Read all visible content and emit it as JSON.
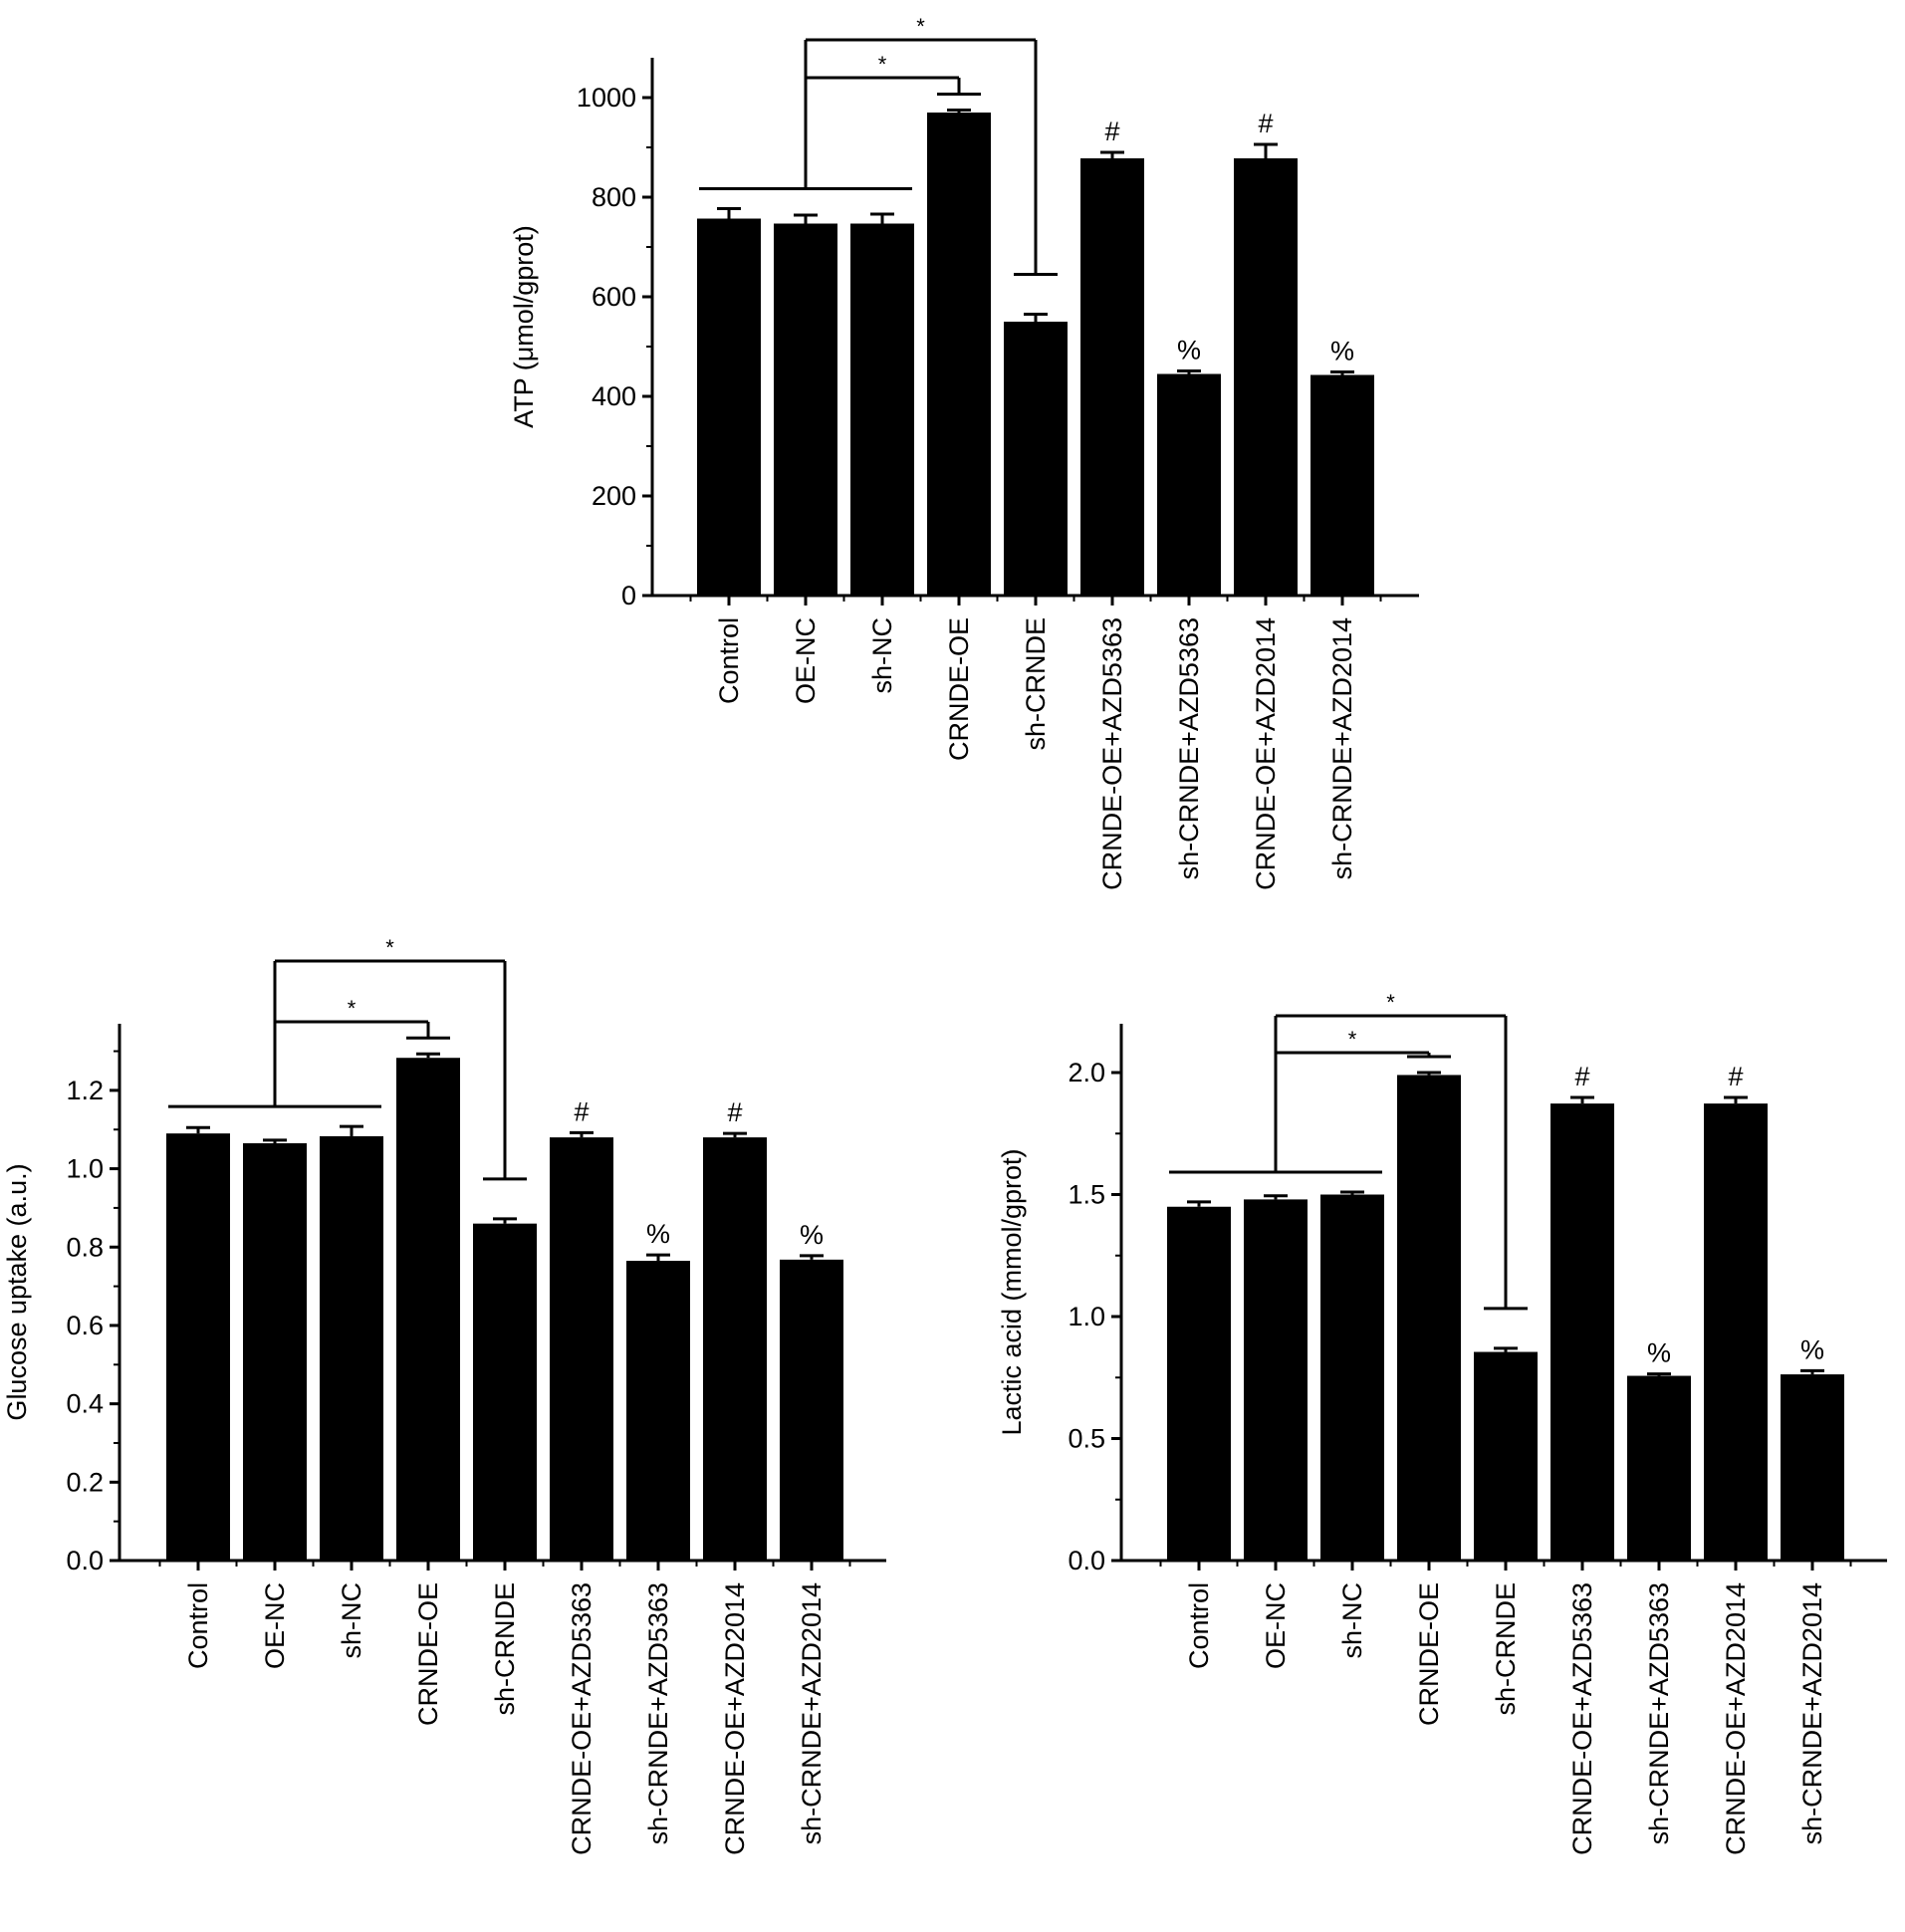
{
  "chart_data": [
    {
      "type": "bar",
      "ylabel": "ATP (μmol/gprot)",
      "ylim": [
        0,
        1080
      ],
      "yticks": [
        "0",
        "200",
        "400",
        "600",
        "800",
        "1000"
      ],
      "ytick_values": [
        0,
        200,
        400,
        600,
        800,
        1000
      ],
      "categories": [
        "Control",
        "OE-NC",
        "sh-NC",
        "CRNDE-OE",
        "sh-CRNDE",
        "CRNDE-OE+AZD5363",
        "sh-CRNDE+AZD5363",
        "CRNDE-OE+AZD2014",
        "sh-CRNDE+AZD2014"
      ],
      "values": [
        757,
        747,
        747,
        970,
        550,
        878,
        445,
        878,
        443
      ],
      "errors": [
        20,
        17,
        19,
        5,
        15,
        12,
        6,
        28,
        6
      ],
      "annotations": [
        "",
        "",
        "",
        "",
        "",
        "#",
        "%",
        "#",
        "%"
      ],
      "significance": {
        "group_end": 2,
        "near_mark": "*",
        "far_mark": "*",
        "near_target": 3,
        "far_target": 4
      }
    },
    {
      "type": "bar",
      "ylabel": "Glucose uptake (a.u.)",
      "ylim": [
        0,
        1.37
      ],
      "yticks": [
        "0.0",
        "0.2",
        "0.4",
        "0.6",
        "0.8",
        "1.0",
        "1.2"
      ],
      "ytick_values": [
        0,
        0.2,
        0.4,
        0.6,
        0.8,
        1.0,
        1.2
      ],
      "categories": [
        "Control",
        "OE-NC",
        "sh-NC",
        "CRNDE-OE",
        "sh-CRNDE",
        "CRNDE-OE+AZD5363",
        "sh-CRNDE+AZD5363",
        "CRNDE-OE+AZD2014",
        "sh-CRNDE+AZD2014"
      ],
      "values": [
        1.09,
        1.065,
        1.083,
        1.283,
        0.86,
        1.08,
        0.765,
        1.08,
        0.768
      ],
      "errors": [
        0.015,
        0.008,
        0.025,
        0.01,
        0.012,
        0.012,
        0.015,
        0.01,
        0.01
      ],
      "annotations": [
        "",
        "",
        "",
        "",
        "",
        "#",
        "%",
        "#",
        "%"
      ],
      "significance": {
        "group_end": 2,
        "near_mark": "*",
        "far_mark": "*",
        "near_target": 3,
        "far_target": 4
      }
    },
    {
      "type": "bar",
      "ylabel": "Lactic acid (mmol/gprot)",
      "ylim": [
        0,
        2.2
      ],
      "yticks": [
        "0.0",
        "0.5",
        "1.0",
        "1.5",
        "2.0"
      ],
      "ytick_values": [
        0,
        0.5,
        1.0,
        1.5,
        2.0
      ],
      "categories": [
        "Control",
        "OE-NC",
        "sh-NC",
        "CRNDE-OE",
        "sh-CRNDE",
        "CRNDE-OE+AZD5363",
        "sh-CRNDE+AZD5363",
        "CRNDE-OE+AZD2014",
        "sh-CRNDE+AZD2014"
      ],
      "values": [
        1.45,
        1.48,
        1.5,
        1.99,
        0.855,
        1.873,
        0.757,
        1.873,
        0.763
      ],
      "errors": [
        0.02,
        0.015,
        0.01,
        0.01,
        0.015,
        0.025,
        0.008,
        0.025,
        0.015
      ],
      "annotations": [
        "",
        "",
        "",
        "",
        "",
        "#",
        "%",
        "#",
        "%"
      ],
      "significance": {
        "group_end": 2,
        "near_mark": "*",
        "far_mark": "*",
        "near_target": 3,
        "far_target": 4
      }
    }
  ]
}
